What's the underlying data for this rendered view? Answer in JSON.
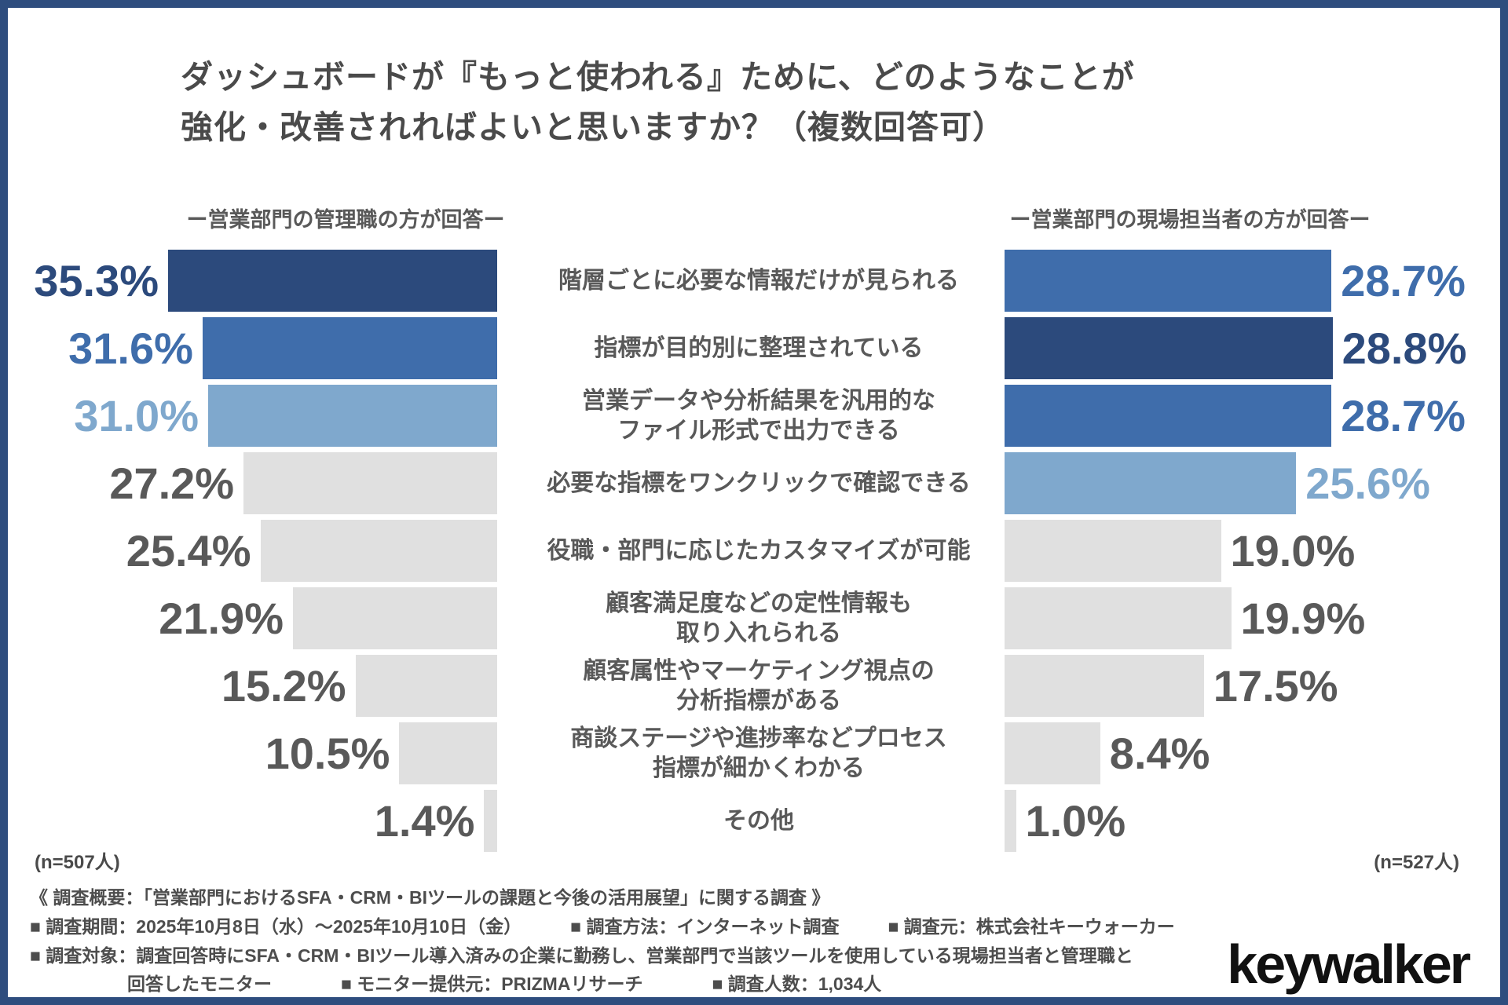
{
  "title": {
    "line1": "ダッシュボードが『もっと使われる』ために、どのようなことが",
    "line2": "強化・改善されればよいと思いますか？（複数回答可）"
  },
  "left_chart": {
    "header": "ー営業部門の管理職の方が回答ー",
    "n_label": "(n=507人)"
  },
  "right_chart": {
    "header": "ー営業部門の現場担当者の方が回答ー",
    "n_label": "(n=527人)"
  },
  "rows": [
    {
      "label": [
        "階層ごとに必要な情報だけが見られる"
      ],
      "left": {
        "display": "35.3%",
        "value": 35.3,
        "tone": "navy"
      },
      "right": {
        "display": "28.7%",
        "value": 28.7,
        "tone": "blue"
      }
    },
    {
      "label": [
        "指標が目的別に整理されている"
      ],
      "left": {
        "display": "31.6%",
        "value": 31.6,
        "tone": "blue"
      },
      "right": {
        "display": "28.8%",
        "value": 28.8,
        "tone": "navy"
      }
    },
    {
      "label": [
        "営業データや分析結果を汎用的な",
        "ファイル形式で出力できる"
      ],
      "left": {
        "display": "31.0%",
        "value": 31.0,
        "tone": "lightblue"
      },
      "right": {
        "display": "28.7%",
        "value": 28.7,
        "tone": "blue"
      }
    },
    {
      "label": [
        "必要な指標をワンクリックで確認できる"
      ],
      "left": {
        "display": "27.2%",
        "value": 27.2,
        "tone": "gray"
      },
      "right": {
        "display": "25.6%",
        "value": 25.6,
        "tone": "lightblue"
      }
    },
    {
      "label": [
        "役職・部門に応じたカスタマイズが可能"
      ],
      "left": {
        "display": "25.4%",
        "value": 25.4,
        "tone": "gray"
      },
      "right": {
        "display": "19.0%",
        "value": 19.0,
        "tone": "gray"
      }
    },
    {
      "label": [
        "顧客満足度などの定性情報も",
        "取り入れられる"
      ],
      "left": {
        "display": "21.9%",
        "value": 21.9,
        "tone": "gray"
      },
      "right": {
        "display": "19.9%",
        "value": 19.9,
        "tone": "gray"
      }
    },
    {
      "label": [
        "顧客属性やマーケティング視点の",
        "分析指標がある"
      ],
      "left": {
        "display": "15.2%",
        "value": 15.2,
        "tone": "gray"
      },
      "right": {
        "display": "17.5%",
        "value": 17.5,
        "tone": "gray"
      }
    },
    {
      "label": [
        "商談ステージや進捗率などプロセス",
        "指標が細かくわかる"
      ],
      "left": {
        "display": "10.5%",
        "value": 10.5,
        "tone": "gray"
      },
      "right": {
        "display": "8.4%",
        "value": 8.4,
        "tone": "gray"
      }
    },
    {
      "label": [
        "その他"
      ],
      "left": {
        "display": "1.4%",
        "value": 1.4,
        "tone": "gray"
      },
      "right": {
        "display": "1.0%",
        "value": 1.0,
        "tone": "gray"
      }
    }
  ],
  "footer": {
    "line1": "《 調査概要：「営業部門におけるSFA・CRM・BIツールの課題と今後の活用展望」に関する調査 》",
    "line2_items": [
      "■ 調査期間：2025年10月8日（水）～2025年10月10日（金）",
      "■ 調査方法：インターネット調査",
      "■ 調査元：株式会社キーウォーカー"
    ],
    "line3": "■ 調査対象：調査回答時にSFA・CRM・BIツール導入済みの企業に勤務し、営業部門で当該ツールを使用している現場担当者と管理職と",
    "line4_items": [
      "回答したモニター",
      "■ モニター提供元：PRIZMAリサーチ",
      "■ 調査人数：1,034人"
    ]
  },
  "logo_text": "keywalker",
  "colors": {
    "navy": "#2c4a7c",
    "blue": "#3f6dab",
    "lightblue": "#7fa8cd",
    "gray_bar": "#e0e0e0",
    "gray_text": "#595959",
    "frame": "#2e4d7e"
  },
  "chart_data": {
    "type": "bar",
    "layout": "diverging horizontal (butterfly), percentages, multiple answers allowed",
    "title": "ダッシュボードが『もっと使われる』ために、どのようなことが強化・改善されればよいと思いますか？（複数回答可）",
    "categories": [
      "階層ごとに必要な情報だけが見られる",
      "指標が目的別に整理されている",
      "営業データや分析結果を汎用的なファイル形式で出力できる",
      "必要な指標をワンクリックで確認できる",
      "役職・部門に応じたカスタマイズが可能",
      "顧客満足度などの定性情報も取り入れられる",
      "顧客属性やマーケティング視点の分析指標がある",
      "商談ステージや進捗率などプロセス指標が細かくわかる",
      "その他"
    ],
    "series": [
      {
        "name": "営業部門の管理職の方が回答",
        "n": "507人",
        "values": [
          35.3,
          31.6,
          31.0,
          27.2,
          25.4,
          21.9,
          15.2,
          10.5,
          1.4
        ]
      },
      {
        "name": "営業部門の現場担当者の方が回答",
        "n": "527人",
        "values": [
          28.7,
          28.8,
          28.7,
          25.6,
          19.0,
          19.9,
          17.5,
          8.4,
          1.0
        ]
      }
    ],
    "xlim": [
      0,
      36
    ],
    "grid": false,
    "value_labels": "shown at bar ends, colored to match top-ranked bars"
  }
}
